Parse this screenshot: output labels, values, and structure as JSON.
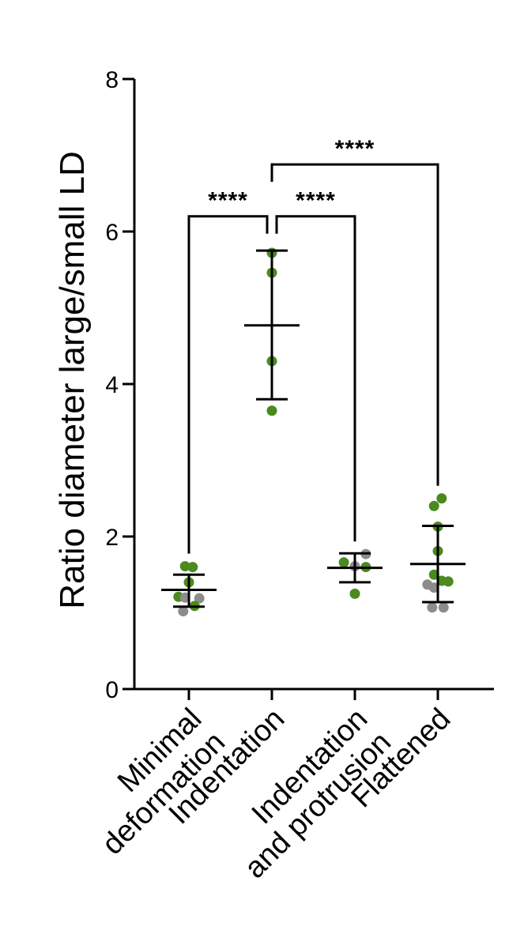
{
  "chart_data": {
    "type": "scatter",
    "ylabel": "Ratio diameter large/small LD",
    "xlabel": "",
    "ylim": [
      0,
      8
    ],
    "yticks": [
      0,
      2,
      4,
      6,
      8
    ],
    "grid": false,
    "colors": {
      "green": "#4a8a1f",
      "gray": "#8c8c8c",
      "axis": "#000000"
    },
    "categories": [
      {
        "label_lines": [
          "Minimal",
          "deformation"
        ],
        "mean": 1.3,
        "sd_low": 1.08,
        "sd_high": 1.5,
        "points": [
          {
            "y": 1.61,
            "dx": -0.2,
            "color": "green"
          },
          {
            "y": 1.6,
            "dx": 0.2,
            "color": "green"
          },
          {
            "y": 1.4,
            "dx": 0.0,
            "color": "green"
          },
          {
            "y": 1.21,
            "dx": -0.55,
            "color": "green"
          },
          {
            "y": 1.2,
            "dx": -0.2,
            "color": "gray"
          },
          {
            "y": 1.19,
            "dx": 0.55,
            "color": "gray"
          },
          {
            "y": 1.09,
            "dx": 0.3,
            "color": "green"
          },
          {
            "y": 1.02,
            "dx": -0.3,
            "color": "gray"
          }
        ]
      },
      {
        "label_lines": [
          "Indentation"
        ],
        "mean": 4.77,
        "sd_low": 3.8,
        "sd_high": 5.75,
        "points": [
          {
            "y": 5.72,
            "dx": 0.0,
            "color": "green"
          },
          {
            "y": 5.46,
            "dx": 0.0,
            "color": "green"
          },
          {
            "y": 4.3,
            "dx": 0.0,
            "color": "green"
          },
          {
            "y": 3.65,
            "dx": 0.0,
            "color": "green"
          }
        ]
      },
      {
        "label_lines": [
          "Indentation",
          "and protrusion"
        ],
        "mean": 1.59,
        "sd_low": 1.4,
        "sd_high": 1.78,
        "points": [
          {
            "y": 1.77,
            "dx": 0.58,
            "color": "gray"
          },
          {
            "y": 1.66,
            "dx": -0.58,
            "color": "green"
          },
          {
            "y": 1.61,
            "dx": 0.0,
            "color": "gray"
          },
          {
            "y": 1.6,
            "dx": 0.58,
            "color": "green"
          },
          {
            "y": 1.25,
            "dx": 0.0,
            "color": "green"
          }
        ]
      },
      {
        "label_lines": [
          "Flattened"
        ],
        "mean": 1.64,
        "sd_low": 1.14,
        "sd_high": 2.14,
        "points": [
          {
            "y": 2.5,
            "dx": 0.2,
            "color": "green"
          },
          {
            "y": 2.4,
            "dx": -0.2,
            "color": "green"
          },
          {
            "y": 2.13,
            "dx": 0.0,
            "color": "green"
          },
          {
            "y": 1.81,
            "dx": 0.0,
            "color": "green"
          },
          {
            "y": 1.5,
            "dx": -0.2,
            "color": "green"
          },
          {
            "y": 1.42,
            "dx": 0.2,
            "color": "green"
          },
          {
            "y": 1.41,
            "dx": 0.55,
            "color": "green"
          },
          {
            "y": 1.37,
            "dx": -0.55,
            "color": "gray"
          },
          {
            "y": 1.33,
            "dx": -0.2,
            "color": "gray"
          },
          {
            "y": 1.07,
            "dx": -0.3,
            "color": "gray"
          },
          {
            "y": 1.07,
            "dx": 0.3,
            "color": "gray"
          }
        ]
      }
    ],
    "comparisons": [
      {
        "from": 0,
        "to": 1,
        "y": 6.2,
        "label": "****"
      },
      {
        "from": 1,
        "to": 2,
        "y": 6.2,
        "label": "****"
      },
      {
        "from": 1,
        "to": 3,
        "y": 6.88,
        "label": "****"
      }
    ]
  }
}
